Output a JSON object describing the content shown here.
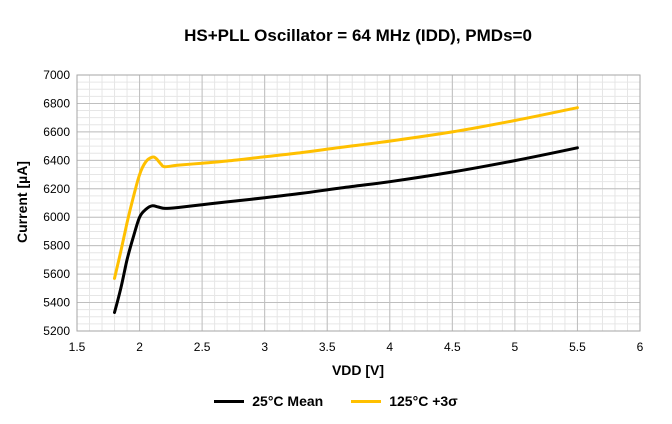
{
  "chart_data": {
    "type": "line",
    "title": "HS+PLL Oscillator = 64 MHz (IDD), PMDs=0",
    "xlabel": "VDD [V]",
    "ylabel": "Current [µA]",
    "xlim": [
      1.5,
      6
    ],
    "ylim": [
      5200,
      7000
    ],
    "x_ticks": [
      1.5,
      2,
      2.5,
      3,
      3.5,
      4,
      4.5,
      5,
      5.5,
      6
    ],
    "y_ticks": [
      5200,
      5400,
      5600,
      5800,
      6000,
      6200,
      6400,
      6600,
      6800,
      7000
    ],
    "x_minor_step": 0.1,
    "y_minor_step": 50,
    "grid": true,
    "legend_position": "bottom",
    "series": [
      {
        "name": "25°C Mean",
        "color": "#000000",
        "x": [
          1.8,
          1.85,
          1.9,
          1.95,
          2.0,
          2.05,
          2.1,
          2.15,
          2.2,
          2.3,
          2.5,
          2.7,
          3.0,
          3.3,
          3.6,
          4.0,
          4.5,
          5.0,
          5.5
        ],
        "y": [
          5330,
          5500,
          5700,
          5860,
          6000,
          6055,
          6080,
          6072,
          6062,
          6068,
          6088,
          6108,
          6137,
          6168,
          6205,
          6250,
          6318,
          6398,
          6488
        ]
      },
      {
        "name": "125°C +3σ",
        "color": "#FFC000",
        "x": [
          1.8,
          1.85,
          1.9,
          1.95,
          2.0,
          2.05,
          2.1,
          2.13,
          2.17,
          2.2,
          2.3,
          2.5,
          2.7,
          3.0,
          3.3,
          3.6,
          4.0,
          4.5,
          5.0,
          5.5
        ],
        "y": [
          5570,
          5760,
          5960,
          6140,
          6300,
          6390,
          6422,
          6415,
          6375,
          6355,
          6365,
          6380,
          6395,
          6425,
          6455,
          6490,
          6535,
          6600,
          6680,
          6770
        ]
      }
    ]
  },
  "legend": {
    "items": [
      {
        "label": "25°C Mean",
        "color": "#000000"
      },
      {
        "label": "125°C +3σ",
        "color": "#FFC000"
      }
    ]
  }
}
